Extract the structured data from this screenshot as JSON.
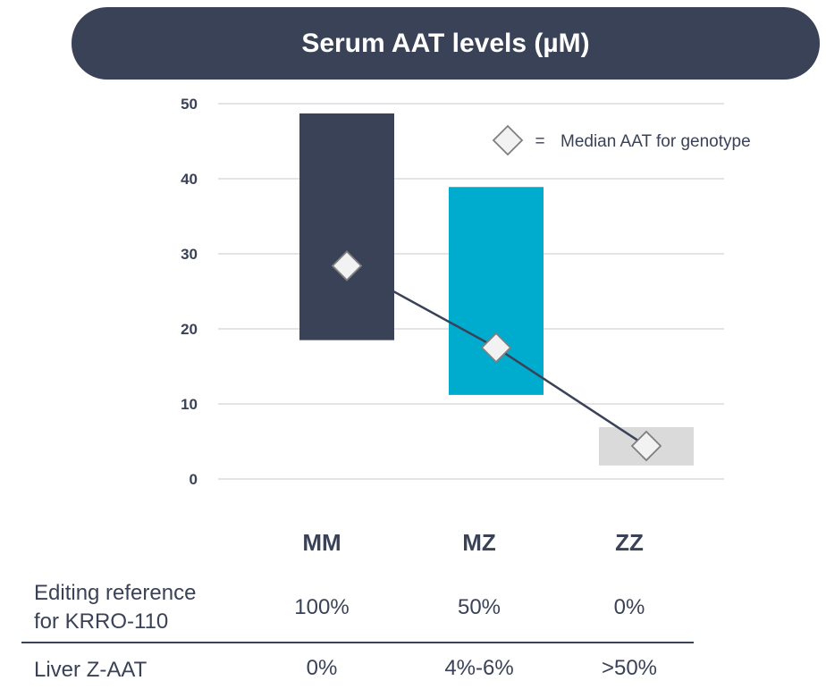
{
  "header": {
    "title": "Serum AAT levels (µM)"
  },
  "colors": {
    "header_bg": "#3a4258",
    "mm": "#3a4258",
    "mz": "#00acce",
    "zz": "#dadada",
    "grid": "#d0d3d9"
  },
  "chart_data": {
    "type": "floating-bar",
    "title": "Serum AAT levels (µM)",
    "ylim": [
      0,
      50
    ],
    "yticks": [
      0,
      10,
      20,
      30,
      40,
      50
    ],
    "categories": [
      "MM",
      "MZ",
      "ZZ"
    ],
    "ranges": [
      {
        "category": "MM",
        "low": 18.5,
        "high": 48.7
      },
      {
        "category": "MZ",
        "low": 11.2,
        "high": 38.9
      },
      {
        "category": "ZZ",
        "low": 1.8,
        "high": 6.9
      }
    ],
    "medians": [
      28.4,
      17.5,
      4.4
    ],
    "legend": {
      "symbol": "diamond",
      "equals": "=",
      "label": "Median AAT for genotype"
    }
  },
  "table": {
    "rows": [
      {
        "label_line1": "Editing reference",
        "label_line2": "for KRRO-110",
        "values": [
          "100%",
          "50%",
          "0%"
        ]
      },
      {
        "label_line1": "Liver Z-AAT",
        "values": [
          "0%",
          "4%-6%",
          ">50%"
        ]
      }
    ]
  }
}
